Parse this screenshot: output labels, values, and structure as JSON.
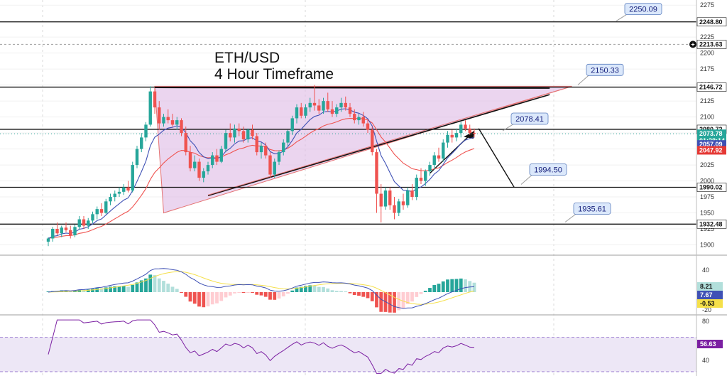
{
  "chart_data": {
    "type": "candlestick",
    "title_line1": "ETH/USD",
    "title_line2": "4 Hour Timeframe",
    "colors": {
      "up": "#26a69a",
      "down": "#ef5350",
      "triangle_fill": "#e1bee7",
      "triangle_edge": "#e57373",
      "ema_fast": "#3f51b5",
      "ema_slow": "#ef5350",
      "macd_line": "#3f51b5",
      "signal_line": "#f5e04a",
      "hist_pos": "#26a69a",
      "hist_pos_light": "#b2dfdb",
      "hist_neg": "#ef5350",
      "hist_neg_light": "#ffcdd2",
      "rsi_line": "#7b1fa2",
      "rsi_band": "#ede7f6",
      "callout_fill": "#dbe8fb",
      "callout_edge": "#5c7fbf"
    },
    "price_axis": {
      "ylim": [
        1885,
        2283
      ],
      "ticks": [
        "1900",
        "1925",
        "1950",
        "1975",
        "2000",
        "2025",
        "2050",
        "2075",
        "2100",
        "2125",
        "2150",
        "2175",
        "2200",
        "2225",
        "2275"
      ]
    },
    "macd_axis": {
      "ticks": [
        "40",
        "-20"
      ]
    },
    "rsi_axis": {
      "ticks": [
        "80",
        "40"
      ]
    },
    "price_badges": [
      {
        "label": "2248.80",
        "value": 2248.8,
        "bg": "#ffffff",
        "fg": "#111111"
      },
      {
        "label": "2213.63",
        "value": 2213.63,
        "bg": "#ffffff",
        "fg": "#111111"
      },
      {
        "label": "2146.72",
        "value": 2146.72,
        "bg": "#ffffff",
        "fg": "#111111"
      },
      {
        "label": "2080.72",
        "value": 2080.72,
        "bg": "#ffffff",
        "fg": "#111111"
      },
      {
        "label": "1990.02",
        "value": 1990.02,
        "bg": "#ffffff",
        "fg": "#111111"
      },
      {
        "label": "1932.48",
        "value": 1932.48,
        "bg": "#ffffff",
        "fg": "#111111"
      }
    ],
    "live_badges": {
      "price": "2073.78",
      "countdown": "01:28:14",
      "ema_fast": "2057.09",
      "ema_slow": "2047.92",
      "macd_hist": "8.21",
      "macd": "7.67",
      "signal": "-0.53",
      "rsi": "56.63"
    },
    "live_values": {
      "price": 2073.78,
      "ema_fast": 2057.09,
      "ema_slow": 2047.92
    },
    "horizontal_levels": [
      2248.8,
      2146.72,
      2080.72,
      1990.02,
      1932.48
    ],
    "dotted_level": 2213.63,
    "callouts": [
      {
        "label": "2250.09",
        "value": 2250.09
      },
      {
        "label": "2150.33",
        "value": 2150.33
      },
      {
        "label": "2078.41",
        "value": 2078.41
      },
      {
        "label": "1994.50",
        "value": 1994.5
      },
      {
        "label": "1935.61",
        "value": 1935.61
      }
    ],
    "candles": [
      [
        1905,
        1912,
        1898,
        1910
      ],
      [
        1910,
        1928,
        1905,
        1925
      ],
      [
        1925,
        1935,
        1915,
        1918
      ],
      [
        1918,
        1930,
        1912,
        1927
      ],
      [
        1927,
        1935,
        1920,
        1923
      ],
      [
        1923,
        1930,
        1910,
        1915
      ],
      [
        1915,
        1932,
        1912,
        1928
      ],
      [
        1928,
        1945,
        1924,
        1940
      ],
      [
        1940,
        1945,
        1925,
        1930
      ],
      [
        1930,
        1942,
        1925,
        1938
      ],
      [
        1938,
        1952,
        1934,
        1948
      ],
      [
        1948,
        1960,
        1940,
        1956
      ],
      [
        1956,
        1965,
        1945,
        1950
      ],
      [
        1950,
        1972,
        1948,
        1968
      ],
      [
        1968,
        1980,
        1962,
        1975
      ],
      [
        1975,
        1985,
        1968,
        1980
      ],
      [
        1980,
        1990,
        1975,
        1983
      ],
      [
        1983,
        1995,
        1978,
        1990
      ],
      [
        1990,
        2000,
        1982,
        1985
      ],
      [
        1985,
        2030,
        1982,
        2025
      ],
      [
        2025,
        2055,
        2020,
        2050
      ],
      [
        2050,
        2075,
        2045,
        2068
      ],
      [
        2068,
        2092,
        2062,
        2088
      ],
      [
        2088,
        2148,
        2085,
        2140
      ],
      [
        2140,
        2145,
        2105,
        2115
      ],
      [
        2115,
        2125,
        2080,
        2090
      ],
      [
        2090,
        2105,
        2085,
        2100
      ],
      [
        2100,
        2112,
        2090,
        2095
      ],
      [
        2095,
        2105,
        2085,
        2088
      ],
      [
        2088,
        2100,
        2080,
        2095
      ],
      [
        2095,
        2098,
        2070,
        2075
      ],
      [
        2075,
        2085,
        2040,
        2045
      ],
      [
        2045,
        2055,
        2015,
        2020
      ],
      [
        2020,
        2040,
        2015,
        2030
      ],
      [
        2030,
        2035,
        2000,
        2005
      ],
      [
        2005,
        2020,
        1998,
        2015
      ],
      [
        2015,
        2030,
        2010,
        2025
      ],
      [
        2025,
        2045,
        2020,
        2040
      ],
      [
        2040,
        2050,
        2025,
        2030
      ],
      [
        2030,
        2055,
        2028,
        2050
      ],
      [
        2050,
        2080,
        2045,
        2075
      ],
      [
        2075,
        2090,
        2062,
        2068
      ],
      [
        2068,
        2088,
        2060,
        2082
      ],
      [
        2082,
        2090,
        2070,
        2078
      ],
      [
        2078,
        2085,
        2060,
        2065
      ],
      [
        2065,
        2082,
        2060,
        2080
      ],
      [
        2080,
        2088,
        2065,
        2070
      ],
      [
        2070,
        2075,
        2040,
        2045
      ],
      [
        2045,
        2060,
        2035,
        2055
      ],
      [
        2055,
        2060,
        2035,
        2040
      ],
      [
        2040,
        2045,
        2005,
        2010
      ],
      [
        2010,
        2035,
        2005,
        2030
      ],
      [
        2030,
        2048,
        2025,
        2045
      ],
      [
        2045,
        2065,
        2040,
        2060
      ],
      [
        2060,
        2080,
        2055,
        2078
      ],
      [
        2078,
        2102,
        2072,
        2098
      ],
      [
        2098,
        2120,
        2090,
        2115
      ],
      [
        2115,
        2122,
        2098,
        2102
      ],
      [
        2102,
        2120,
        2098,
        2115
      ],
      [
        2115,
        2130,
        2108,
        2122
      ],
      [
        2122,
        2150,
        2110,
        2118
      ],
      [
        2118,
        2128,
        2105,
        2110
      ],
      [
        2110,
        2130,
        2105,
        2125
      ],
      [
        2125,
        2138,
        2108,
        2112
      ],
      [
        2112,
        2125,
        2100,
        2105
      ],
      [
        2105,
        2120,
        2100,
        2115
      ],
      [
        2115,
        2130,
        2108,
        2122
      ],
      [
        2122,
        2132,
        2110,
        2115
      ],
      [
        2115,
        2122,
        2100,
        2105
      ],
      [
        2105,
        2112,
        2090,
        2095
      ],
      [
        2095,
        2105,
        2088,
        2100
      ],
      [
        2100,
        2108,
        2085,
        2090
      ],
      [
        2090,
        2095,
        2075,
        2080
      ],
      [
        2080,
        2085,
        2040,
        2045
      ],
      [
        2045,
        2050,
        1950,
        1980
      ],
      [
        1980,
        1995,
        1935,
        1960
      ],
      [
        1960,
        1990,
        1955,
        1985
      ],
      [
        1985,
        1990,
        1955,
        1962
      ],
      [
        1962,
        1975,
        1940,
        1950
      ],
      [
        1950,
        1972,
        1945,
        1968
      ],
      [
        1968,
        1980,
        1955,
        1962
      ],
      [
        1962,
        1990,
        1958,
        1985
      ],
      [
        1985,
        1995,
        1970,
        1975
      ],
      [
        1975,
        2010,
        1970,
        2005
      ],
      [
        2005,
        2020,
        1995,
        2000
      ],
      [
        2000,
        2018,
        1992,
        2015
      ],
      [
        2015,
        2030,
        2008,
        2025
      ],
      [
        2025,
        2045,
        2018,
        2040
      ],
      [
        2040,
        2052,
        2030,
        2035
      ],
      [
        2035,
        2065,
        2030,
        2060
      ],
      [
        2060,
        2078,
        2052,
        2072
      ],
      [
        2072,
        2080,
        2060,
        2068
      ],
      [
        2068,
        2082,
        2062,
        2075
      ],
      [
        2075,
        2092,
        2068,
        2088
      ],
      [
        2088,
        2095,
        2078,
        2082
      ],
      [
        2082,
        2088,
        2072,
        2075
      ],
      [
        2075,
        2082,
        2068,
        2074
      ]
    ]
  }
}
